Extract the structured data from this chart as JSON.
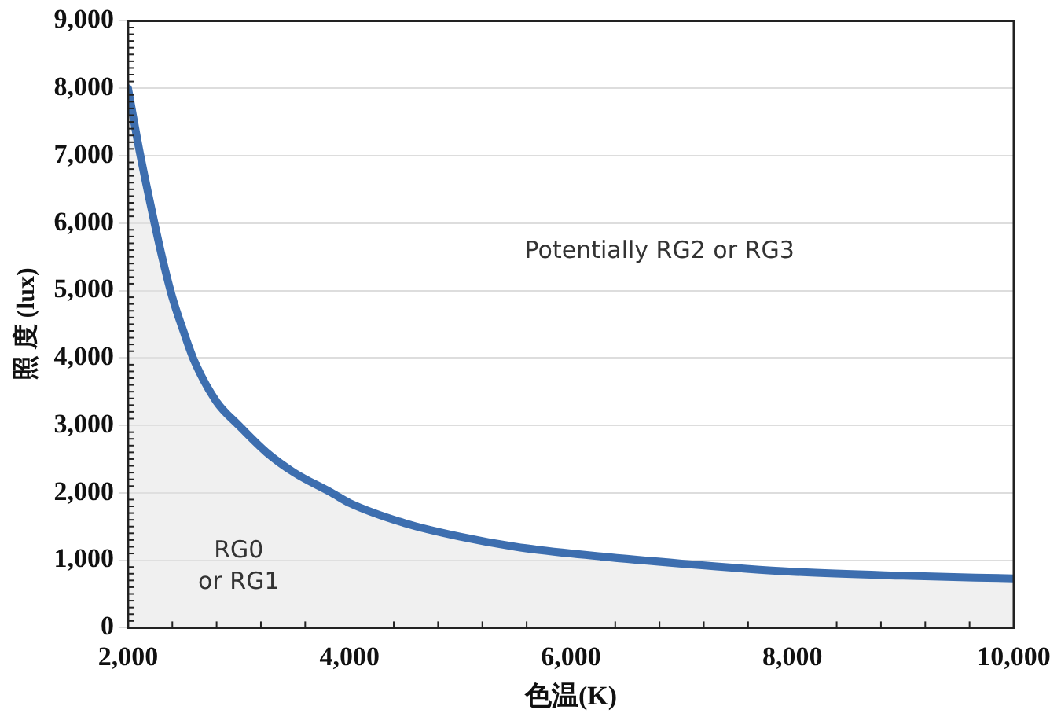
{
  "chart_data": {
    "type": "area",
    "xlabel": "色温(K)",
    "ylabel": "照 度 (lux)",
    "annotations": [
      "Potentially RG2 or RG3",
      "RG0\nor RG1"
    ],
    "x": [
      2000,
      2100,
      2200,
      2300,
      2400,
      2500,
      2600,
      2800,
      3000,
      3250,
      3500,
      3840,
      4000,
      4500,
      5000,
      5500,
      6000,
      7000,
      8000,
      9000,
      10000
    ],
    "series": [
      {
        "color": "#3d6eaf",
        "values": [
          8000,
          7100,
          6300,
          5550,
          4900,
          4400,
          3950,
          3350,
          3000,
          2600,
          2300,
          2000,
          1850,
          1550,
          1350,
          1200,
          1100,
          950,
          830,
          770,
          730
        ]
      }
    ],
    "xlim": [
      2000,
      10000
    ],
    "xticks": [
      {
        "value": 2000,
        "label": "2,000"
      },
      {
        "value": 4000,
        "label": "4,000"
      },
      {
        "value": 6000,
        "label": "6,000"
      },
      {
        "value": 8000,
        "label": "8,000"
      },
      {
        "value": 10000,
        "label": "10,000"
      }
    ],
    "ylim": [
      0,
      9000
    ],
    "yticks": [
      {
        "value": 0,
        "label": "0"
      },
      {
        "value": 1000,
        "label": "1,000"
      },
      {
        "value": 2000,
        "label": "2,000"
      },
      {
        "value": 3000,
        "label": "3,000"
      },
      {
        "value": 4000,
        "label": "4,000"
      },
      {
        "value": 5000,
        "label": "5,000"
      },
      {
        "value": 6000,
        "label": "6,000"
      },
      {
        "value": 7000,
        "label": "7,000"
      },
      {
        "value": 8000,
        "label": "8,000"
      },
      {
        "value": 9000,
        "label": "9,000"
      }
    ],
    "grid": "y",
    "legend": false,
    "marker": "none",
    "line_style": "solid"
  }
}
